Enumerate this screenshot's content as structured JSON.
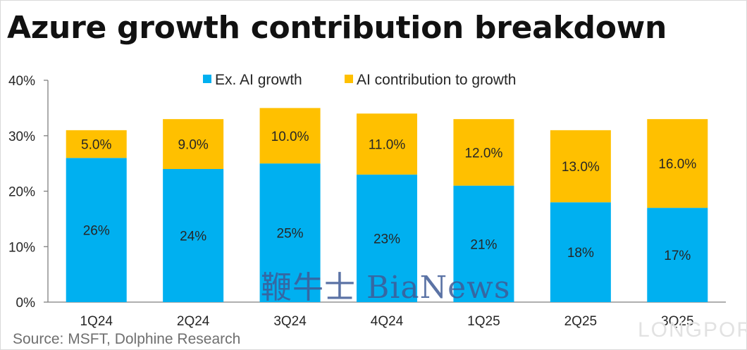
{
  "title": "Azure growth contribution breakdown",
  "source": "Source:   MSFT, Dolphine Research",
  "watermark": "鞭牛士 BiaNews",
  "corner_mark": "LONGPORT",
  "colors": {
    "ex_ai": "#00b0f0",
    "ai": "#ffc000",
    "axis": "#7f7f7f",
    "text": "#262626"
  },
  "chart_data": {
    "type": "bar",
    "stacked": true,
    "categories": [
      "1Q24",
      "2Q24",
      "3Q24",
      "4Q24",
      "1Q25",
      "2Q25",
      "3Q25"
    ],
    "series": [
      {
        "name": "Ex. AI growth",
        "values": [
          26,
          24,
          25,
          23,
          21,
          18,
          17
        ],
        "labels": [
          "26%",
          "24%",
          "25%",
          "23%",
          "21%",
          "18%",
          "17%"
        ]
      },
      {
        "name": "AI contribution to growth",
        "values": [
          5,
          9,
          10,
          11,
          12,
          13,
          16
        ],
        "labels": [
          "5.0%",
          "9.0%",
          "10.0%",
          "11.0%",
          "12.0%",
          "13.0%",
          "16.0%"
        ]
      }
    ],
    "ylim": [
      0,
      40
    ],
    "yticks": [
      "0%",
      "10%",
      "20%",
      "30%",
      "40%"
    ],
    "legend": "top",
    "grid": false
  }
}
